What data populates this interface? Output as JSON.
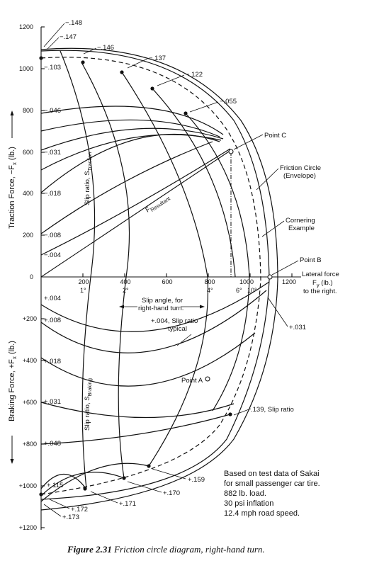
{
  "axes": {
    "y_top_ticks": [
      "1200",
      "1000",
      "800",
      "600",
      "400",
      "200",
      "0"
    ],
    "y_bottom_ticks": [
      "+200",
      "+400",
      "+600",
      "+800",
      "+1000",
      "+1200"
    ],
    "x_ticks": [
      "200",
      "400",
      "600",
      "800",
      "1000",
      "1200"
    ],
    "y_top_label": "Traction Force, −F",
    "y_top_sub": "x",
    "y_top_unit": " (lb.)",
    "y_bottom_label": "Braking Force, +F",
    "y_bottom_sub": "x",
    "y_bottom_unit": " (lb.)",
    "x_label_1": "Lateral force",
    "x_label_2": "F",
    "x_label_2_sub": "y",
    "x_label_2_unit": " (lb.)",
    "x_label_3": "to the right."
  },
  "slip_angle_labels": [
    "1°",
    "2°",
    "4°",
    "6°",
    "10°"
  ],
  "traction_slip_labels": [
    "−.148",
    "−.147",
    "−.146",
    "−.137",
    "−.122",
    "−.055",
    "−.103",
    "−.046",
    "−.031",
    "−.018",
    "−.008",
    "−.004"
  ],
  "braking_slip_labels": [
    "+.004",
    "+.008",
    "+.018",
    "+.031",
    "+.048",
    "+.115",
    "+.172",
    "+.173",
    "+.171",
    "+.170",
    "+.159",
    "+.031"
  ],
  "annotations": {
    "point_c": "Point C",
    "point_b": "Point B",
    "point_a": "Point A",
    "friction_circle_1": "Friction Circle",
    "friction_circle_2": "(Envelope)",
    "cornering_1": "Cornering",
    "cornering_2": "Example",
    "resultant": "F",
    "resultant_sub": "Resultant",
    "slip_ratio_traction": "Slip ratio, S",
    "slip_ratio_traction_sub": "Traction",
    "slip_ratio_braking": "Slip ratio, S",
    "slip_ratio_braking_sub": "Braking",
    "slip_angle_1": "Slip angle, for",
    "slip_angle_2": "right-hand turn.",
    "typical_1": "+.004, Slip ratio",
    "typical_2": "typical",
    "slip_139": ".139, Slip ratio"
  },
  "test_note": [
    "Based on test data of Sakai",
    "for small passenger car tire.",
    "882 lb. load.",
    "30 psi inflation",
    "12.4 mph road speed."
  ],
  "caption": {
    "figure": "Figure 2.31",
    "text": " Friction circle diagram, right-hand turn."
  }
}
